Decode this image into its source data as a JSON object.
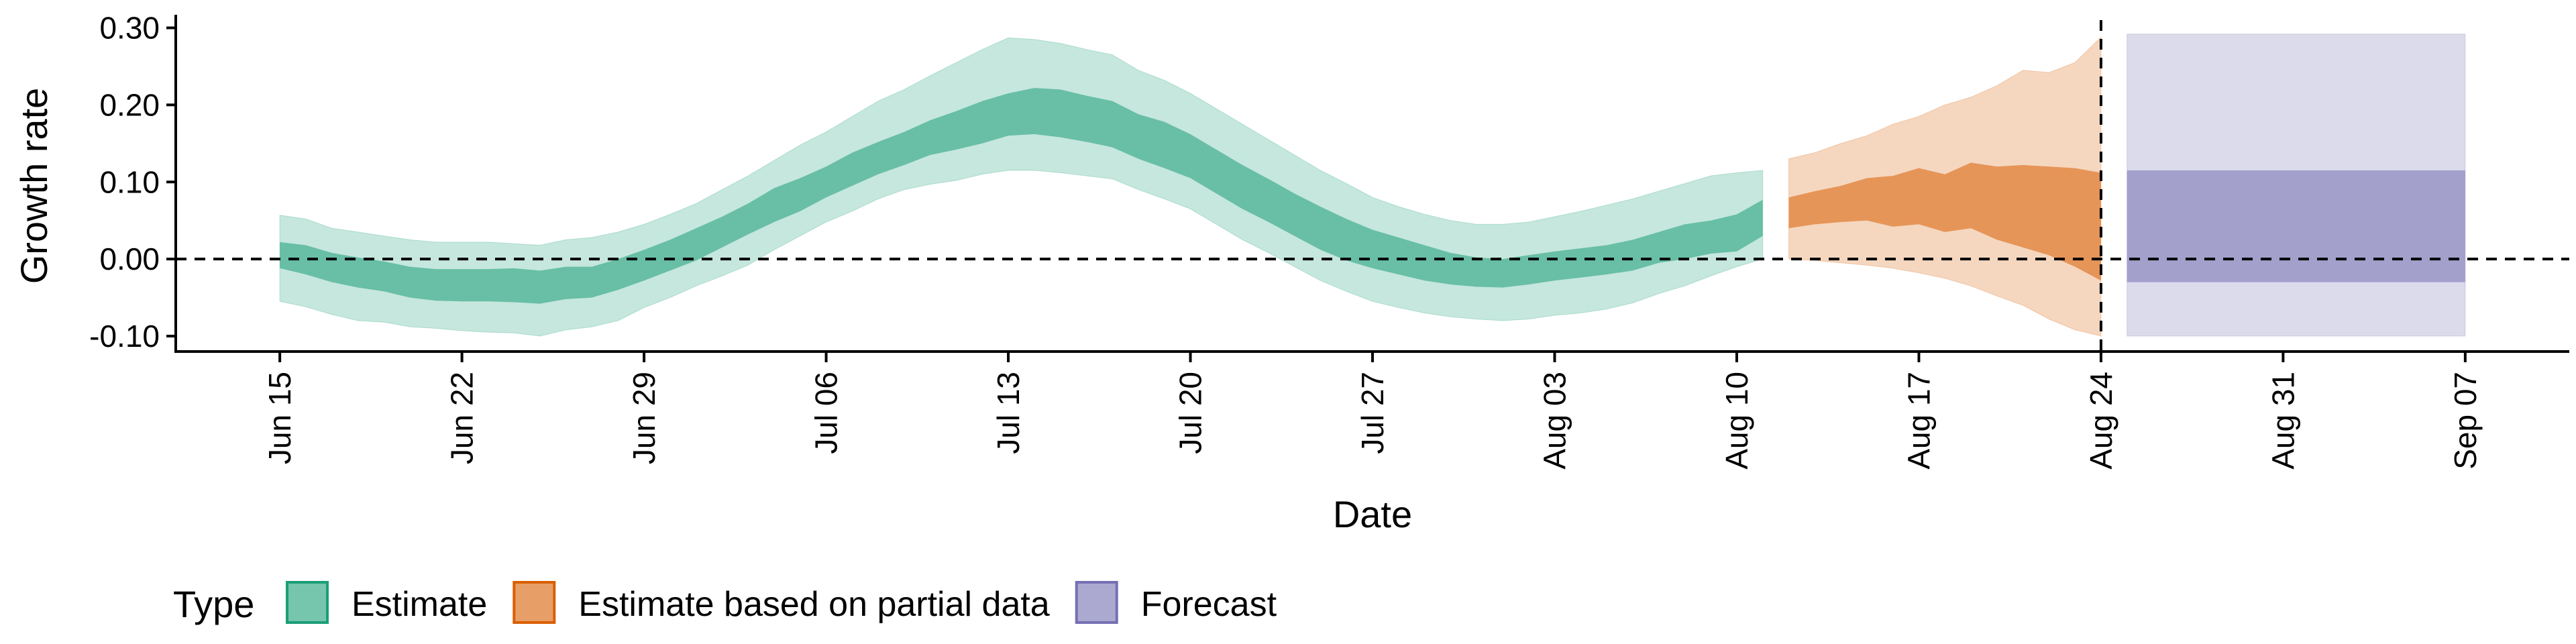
{
  "chart_data": {
    "type": "area",
    "xlabel": "Date",
    "ylabel": "Growth rate",
    "ylim": [
      -0.12,
      0.31
    ],
    "y_ticks": [
      -0.1,
      0.0,
      0.1,
      0.2,
      0.3
    ],
    "y_tick_labels": [
      "-0.10",
      "0.00",
      "0.10",
      "0.20",
      "0.30"
    ],
    "x_range": [
      "2020-06-11",
      "2020-09-11"
    ],
    "x_ticks": [
      "2020-06-15",
      "2020-06-22",
      "2020-06-29",
      "2020-07-06",
      "2020-07-13",
      "2020-07-20",
      "2020-07-27",
      "2020-08-03",
      "2020-08-10",
      "2020-08-17",
      "2020-08-24",
      "2020-08-31",
      "2020-09-07"
    ],
    "x_tick_labels": [
      "Jun 15",
      "Jun 22",
      "Jun 29",
      "Jul 06",
      "Jul 13",
      "Jul 20",
      "Jul 27",
      "Aug 03",
      "Aug 10",
      "Aug 17",
      "Aug 24",
      "Aug 31",
      "Sep 07"
    ],
    "reference_lines": {
      "horizontal_y": 0.0,
      "vertical_date": "2020-08-24",
      "style": "dashed"
    },
    "legend": {
      "title": "Type",
      "position": "bottom-left",
      "entries": [
        {
          "label": "Estimate",
          "color": "#1B9E77"
        },
        {
          "label": "Estimate based on partial data",
          "color": "#D95F02"
        },
        {
          "label": "Forecast",
          "color": "#7570B3"
        }
      ]
    },
    "series": [
      {
        "name": "Estimate",
        "color": "#1B9E77",
        "dates": [
          "2020-06-15",
          "2020-06-16",
          "2020-06-17",
          "2020-06-18",
          "2020-06-19",
          "2020-06-20",
          "2020-06-21",
          "2020-06-22",
          "2020-06-23",
          "2020-06-24",
          "2020-06-25",
          "2020-06-26",
          "2020-06-27",
          "2020-06-28",
          "2020-06-29",
          "2020-06-30",
          "2020-07-01",
          "2020-07-02",
          "2020-07-03",
          "2020-07-04",
          "2020-07-05",
          "2020-07-06",
          "2020-07-07",
          "2020-07-08",
          "2020-07-09",
          "2020-07-10",
          "2020-07-11",
          "2020-07-12",
          "2020-07-13",
          "2020-07-14",
          "2020-07-15",
          "2020-07-16",
          "2020-07-17",
          "2020-07-18",
          "2020-07-19",
          "2020-07-20",
          "2020-07-21",
          "2020-07-22",
          "2020-07-23",
          "2020-07-24",
          "2020-07-25",
          "2020-07-26",
          "2020-07-27",
          "2020-07-28",
          "2020-07-29",
          "2020-07-30",
          "2020-07-31",
          "2020-08-01",
          "2020-08-02",
          "2020-08-03",
          "2020-08-04",
          "2020-08-05",
          "2020-08-06",
          "2020-08-07",
          "2020-08-08",
          "2020-08-09",
          "2020-08-10",
          "2020-08-11"
        ],
        "lower_90": [
          -0.055,
          -0.062,
          -0.072,
          -0.08,
          -0.082,
          -0.088,
          -0.09,
          -0.093,
          -0.095,
          -0.096,
          -0.1,
          -0.092,
          -0.088,
          -0.08,
          -0.063,
          -0.05,
          -0.035,
          -0.022,
          -0.008,
          0.012,
          0.03,
          0.048,
          0.062,
          0.078,
          0.09,
          0.097,
          0.102,
          0.11,
          0.115,
          0.115,
          0.112,
          0.108,
          0.104,
          0.09,
          0.078,
          0.065,
          0.045,
          0.025,
          0.008,
          -0.01,
          -0.028,
          -0.042,
          -0.055,
          -0.063,
          -0.07,
          -0.075,
          -0.078,
          -0.08,
          -0.078,
          -0.073,
          -0.07,
          -0.065,
          -0.057,
          -0.045,
          -0.035,
          -0.022,
          -0.01,
          0.0
        ],
        "lower_50": [
          -0.012,
          -0.02,
          -0.03,
          -0.037,
          -0.042,
          -0.05,
          -0.054,
          -0.055,
          -0.055,
          -0.056,
          -0.058,
          -0.052,
          -0.05,
          -0.04,
          -0.028,
          -0.015,
          -0.002,
          0.015,
          0.032,
          0.048,
          0.062,
          0.08,
          0.095,
          0.11,
          0.122,
          0.135,
          0.142,
          0.15,
          0.16,
          0.162,
          0.158,
          0.152,
          0.145,
          0.13,
          0.118,
          0.105,
          0.085,
          0.065,
          0.048,
          0.03,
          0.012,
          -0.002,
          -0.012,
          -0.02,
          -0.028,
          -0.033,
          -0.036,
          -0.037,
          -0.033,
          -0.028,
          -0.024,
          -0.02,
          -0.015,
          -0.005,
          0.0,
          0.007,
          0.01,
          0.03
        ],
        "upper_50": [
          0.022,
          0.018,
          0.008,
          0.002,
          -0.003,
          -0.01,
          -0.013,
          -0.013,
          -0.013,
          -0.012,
          -0.015,
          -0.01,
          -0.01,
          0.0,
          0.012,
          0.025,
          0.04,
          0.055,
          0.072,
          0.092,
          0.105,
          0.12,
          0.138,
          0.152,
          0.165,
          0.18,
          0.192,
          0.205,
          0.215,
          0.222,
          0.22,
          0.212,
          0.205,
          0.188,
          0.178,
          0.162,
          0.142,
          0.122,
          0.104,
          0.085,
          0.068,
          0.052,
          0.038,
          0.028,
          0.018,
          0.008,
          0.002,
          0.0,
          0.005,
          0.01,
          0.014,
          0.018,
          0.025,
          0.035,
          0.045,
          0.05,
          0.058,
          0.077
        ],
        "upper_90": [
          0.057,
          0.052,
          0.04,
          0.035,
          0.03,
          0.025,
          0.022,
          0.022,
          0.022,
          0.02,
          0.018,
          0.025,
          0.028,
          0.035,
          0.045,
          0.058,
          0.072,
          0.09,
          0.108,
          0.128,
          0.148,
          0.165,
          0.185,
          0.205,
          0.22,
          0.238,
          0.255,
          0.272,
          0.287,
          0.285,
          0.28,
          0.272,
          0.265,
          0.245,
          0.232,
          0.215,
          0.195,
          0.175,
          0.155,
          0.135,
          0.115,
          0.098,
          0.08,
          0.068,
          0.058,
          0.05,
          0.045,
          0.045,
          0.048,
          0.055,
          0.062,
          0.07,
          0.078,
          0.088,
          0.098,
          0.108,
          0.112,
          0.115
        ]
      },
      {
        "name": "Estimate based on partial data",
        "color": "#D95F02",
        "dates": [
          "2020-08-12",
          "2020-08-13",
          "2020-08-14",
          "2020-08-15",
          "2020-08-16",
          "2020-08-17",
          "2020-08-18",
          "2020-08-19",
          "2020-08-20",
          "2020-08-21",
          "2020-08-22",
          "2020-08-23",
          "2020-08-24"
        ],
        "lower_90": [
          0.0,
          -0.002,
          -0.005,
          -0.008,
          -0.012,
          -0.018,
          -0.025,
          -0.035,
          -0.048,
          -0.06,
          -0.078,
          -0.092,
          -0.1
        ],
        "lower_50": [
          0.04,
          0.045,
          0.048,
          0.05,
          0.042,
          0.045,
          0.035,
          0.04,
          0.025,
          0.015,
          0.005,
          -0.01,
          -0.028
        ],
        "upper_50": [
          0.08,
          0.088,
          0.095,
          0.105,
          0.108,
          0.118,
          0.11,
          0.125,
          0.12,
          0.122,
          0.12,
          0.118,
          0.112
        ],
        "upper_90": [
          0.13,
          0.138,
          0.15,
          0.16,
          0.175,
          0.185,
          0.2,
          0.21,
          0.225,
          0.245,
          0.242,
          0.255,
          0.288
        ]
      },
      {
        "name": "Forecast",
        "color": "#7570B3",
        "dates": [
          "2020-08-25",
          "2020-09-07"
        ],
        "lower_90": [
          -0.1,
          -0.1
        ],
        "lower_50": [
          -0.03,
          -0.03
        ],
        "upper_50": [
          0.115,
          0.115
        ],
        "upper_90": [
          0.292,
          0.292
        ]
      }
    ]
  }
}
